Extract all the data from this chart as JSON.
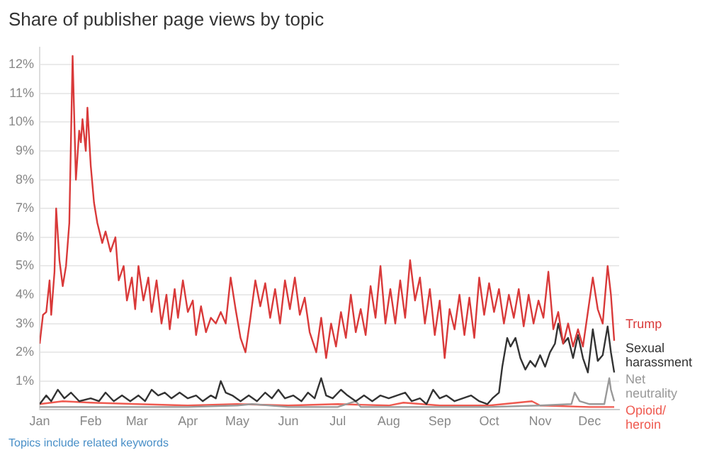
{
  "chart_data": {
    "type": "line",
    "title": "Share of publisher page views by topic",
    "annotations": [
      "Topics include related keywords"
    ],
    "xlim": [
      "--01-01",
      "--12-19"
    ],
    "xticks": [
      {
        "value": "--01-01",
        "label": "Jan"
      },
      {
        "value": "--02-01",
        "label": "Feb"
      },
      {
        "value": "--03-01",
        "label": "Mar"
      },
      {
        "value": "--04-01",
        "label": "Apr"
      },
      {
        "value": "--05-01",
        "label": "May"
      },
      {
        "value": "--06-01",
        "label": "Jun"
      },
      {
        "value": "--07-01",
        "label": "Jul"
      },
      {
        "value": "--08-01",
        "label": "Aug"
      },
      {
        "value": "--09-01",
        "label": "Sep"
      },
      {
        "value": "--10-01",
        "label": "Oct"
      },
      {
        "value": "--11-01",
        "label": "Nov"
      },
      {
        "value": "--12-01",
        "label": "Dec"
      }
    ],
    "ylim": [
      0,
      12.6
    ],
    "yticks": [
      {
        "value": 1,
        "label": "1%"
      },
      {
        "value": 2,
        "label": "2%"
      },
      {
        "value": 3,
        "label": "3%"
      },
      {
        "value": 4,
        "label": "4%"
      },
      {
        "value": 5,
        "label": "5%"
      },
      {
        "value": 6,
        "label": "6%"
      },
      {
        "value": 7,
        "label": "7%"
      },
      {
        "value": 8,
        "label": "8%"
      },
      {
        "value": 9,
        "label": "9%"
      },
      {
        "value": 10,
        "label": "10%"
      },
      {
        "value": 11,
        "label": "11%"
      },
      {
        "value": 12,
        "label": "12%"
      }
    ],
    "grid": "y",
    "line_style": "solid",
    "series": [
      {
        "name": "Trump",
        "color": "#d93a3a",
        "x": [
          "--01-01",
          "--01-03",
          "--01-05",
          "--01-07",
          "--01-08",
          "--01-10",
          "--01-11",
          "--01-13",
          "--01-15",
          "--01-17",
          "--01-19",
          "--01-21",
          "--01-23",
          "--01-25",
          "--01-26",
          "--01-27",
          "--01-29",
          "--01-30",
          "--02-01",
          "--02-03",
          "--02-05",
          "--02-08",
          "--02-10",
          "--02-13",
          "--02-16",
          "--02-18",
          "--02-21",
          "--02-23",
          "--02-26",
          "--02-28",
          "--03-02",
          "--03-05",
          "--03-08",
          "--03-10",
          "--03-13",
          "--03-16",
          "--03-19",
          "--03-21",
          "--03-24",
          "--03-26",
          "--03-29",
          "--04-01",
          "--04-04",
          "--04-06",
          "--04-09",
          "--04-12",
          "--04-15",
          "--04-18",
          "--04-21",
          "--04-24",
          "--04-27",
          "--04-30",
          "--05-03",
          "--05-06",
          "--05-09",
          "--05-12",
          "--05-15",
          "--05-18",
          "--05-21",
          "--05-24",
          "--05-27",
          "--05-30",
          "--06-02",
          "--06-05",
          "--06-08",
          "--06-11",
          "--06-14",
          "--06-18",
          "--06-21",
          "--06-24",
          "--06-27",
          "--06-30",
          "--07-03",
          "--07-06",
          "--07-09",
          "--07-12",
          "--07-15",
          "--07-18",
          "--07-21",
          "--07-24",
          "--07-27",
          "--07-30",
          "--08-02",
          "--08-05",
          "--08-08",
          "--08-11",
          "--08-14",
          "--08-17",
          "--08-20",
          "--08-23",
          "--08-26",
          "--08-29",
          "--09-01",
          "--09-04",
          "--09-07",
          "--09-10",
          "--09-13",
          "--09-16",
          "--09-19",
          "--09-22",
          "--09-25",
          "--09-28",
          "--10-01",
          "--10-04",
          "--10-07",
          "--10-10",
          "--10-13",
          "--10-16",
          "--10-19",
          "--10-22",
          "--10-25",
          "--10-28",
          "--10-31",
          "--11-03",
          "--11-06",
          "--11-09",
          "--11-12",
          "--11-15",
          "--11-18",
          "--11-21",
          "--11-24",
          "--11-27",
          "--11-30",
          "--12-03",
          "--12-06",
          "--12-09",
          "--12-12",
          "--12-14",
          "--12-16"
        ],
        "values": [
          2.3,
          3.3,
          3.4,
          4.5,
          3.3,
          4.8,
          7.0,
          5.2,
          4.3,
          5.0,
          6.5,
          12.3,
          8.0,
          9.7,
          9.3,
          10.1,
          9.0,
          10.5,
          8.5,
          7.2,
          6.5,
          5.8,
          6.2,
          5.5,
          6.0,
          4.5,
          5.0,
          3.8,
          4.6,
          3.5,
          5.0,
          3.8,
          4.6,
          3.4,
          4.5,
          3.0,
          4.0,
          2.8,
          4.2,
          3.2,
          4.5,
          3.4,
          3.8,
          2.6,
          3.6,
          2.7,
          3.2,
          3.0,
          3.4,
          3.0,
          4.6,
          3.5,
          2.5,
          2.0,
          3.2,
          4.5,
          3.6,
          4.4,
          3.2,
          4.2,
          3.0,
          4.5,
          3.5,
          4.6,
          3.3,
          3.9,
          2.7,
          2.0,
          3.2,
          1.8,
          3.0,
          2.2,
          3.4,
          2.5,
          4.0,
          2.7,
          3.5,
          2.6,
          4.3,
          3.2,
          5.0,
          3.0,
          4.2,
          3.0,
          4.5,
          3.2,
          5.2,
          3.8,
          4.6,
          3.0,
          4.2,
          2.6,
          3.8,
          1.8,
          3.5,
          2.8,
          4.0,
          2.6,
          3.9,
          2.5,
          4.6,
          3.3,
          4.4,
          3.4,
          4.2,
          3.0,
          4.0,
          3.2,
          4.2,
          2.9,
          4.0,
          3.0,
          3.8,
          3.2,
          4.8,
          2.8,
          3.4,
          2.3,
          3.0,
          2.2,
          2.8,
          2.2,
          3.4,
          4.6,
          3.5,
          3.0,
          5.0,
          4.0,
          2.4
        ]
      },
      {
        "name": "Sexual harassment",
        "color": "#333333",
        "x": [
          "--01-01",
          "--01-05",
          "--01-08",
          "--01-12",
          "--01-16",
          "--01-20",
          "--01-25",
          "--02-01",
          "--02-06",
          "--02-10",
          "--02-15",
          "--02-20",
          "--02-25",
          "--03-02",
          "--03-06",
          "--03-10",
          "--03-14",
          "--03-18",
          "--03-22",
          "--03-27",
          "--04-01",
          "--04-06",
          "--04-10",
          "--04-15",
          "--04-18",
          "--04-21",
          "--04-24",
          "--04-28",
          "--05-03",
          "--05-08",
          "--05-13",
          "--05-18",
          "--05-22",
          "--05-26",
          "--05-30",
          "--06-04",
          "--06-09",
          "--06-13",
          "--06-17",
          "--06-21",
          "--06-24",
          "--06-28",
          "--07-03",
          "--07-07",
          "--07-12",
          "--07-17",
          "--07-22",
          "--07-27",
          "--08-01",
          "--08-06",
          "--08-11",
          "--08-15",
          "--08-20",
          "--08-24",
          "--08-28",
          "--09-01",
          "--09-05",
          "--09-10",
          "--09-15",
          "--09-20",
          "--09-25",
          "--09-30",
          "--10-03",
          "--10-07",
          "--10-09",
          "--10-12",
          "--10-14",
          "--10-17",
          "--10-20",
          "--10-23",
          "--10-26",
          "--10-29",
          "--11-01",
          "--11-04",
          "--11-07",
          "--11-10",
          "--11-12",
          "--11-15",
          "--11-18",
          "--11-21",
          "--11-24",
          "--11-27",
          "--11-30",
          "--12-03",
          "--12-06",
          "--12-09",
          "--12-12",
          "--12-14",
          "--12-16"
        ],
        "values": [
          0.2,
          0.5,
          0.3,
          0.7,
          0.4,
          0.6,
          0.3,
          0.4,
          0.3,
          0.6,
          0.3,
          0.5,
          0.3,
          0.5,
          0.3,
          0.7,
          0.5,
          0.6,
          0.4,
          0.6,
          0.4,
          0.5,
          0.3,
          0.5,
          0.4,
          1.0,
          0.6,
          0.5,
          0.3,
          0.5,
          0.3,
          0.6,
          0.4,
          0.7,
          0.4,
          0.5,
          0.3,
          0.6,
          0.4,
          1.1,
          0.5,
          0.4,
          0.7,
          0.5,
          0.3,
          0.5,
          0.3,
          0.5,
          0.4,
          0.5,
          0.6,
          0.3,
          0.4,
          0.2,
          0.7,
          0.4,
          0.5,
          0.3,
          0.4,
          0.5,
          0.3,
          0.2,
          0.4,
          0.6,
          1.5,
          2.5,
          2.2,
          2.5,
          1.8,
          1.4,
          1.7,
          1.5,
          1.9,
          1.5,
          2.0,
          2.3,
          3.0,
          2.3,
          2.5,
          1.8,
          2.6,
          1.8,
          1.3,
          2.8,
          1.7,
          1.9,
          2.9,
          2.0,
          1.3
        ]
      },
      {
        "name": "Net neutrality",
        "color": "#999999",
        "x": [
          "--01-01",
          "--02-01",
          "--03-01",
          "--04-01",
          "--05-01",
          "--05-10",
          "--06-01",
          "--07-01",
          "--07-12",
          "--07-15",
          "--08-01",
          "--09-01",
          "--10-01",
          "--11-01",
          "--11-20",
          "--11-22",
          "--11-25",
          "--12-01",
          "--12-10",
          "--12-13",
          "--12-14",
          "--12-16"
        ],
        "values": [
          0.1,
          0.1,
          0.1,
          0.1,
          0.15,
          0.2,
          0.1,
          0.1,
          0.3,
          0.1,
          0.1,
          0.1,
          0.1,
          0.15,
          0.2,
          0.6,
          0.3,
          0.2,
          0.2,
          1.1,
          0.7,
          0.3
        ]
      },
      {
        "name": "Opioid/heroin",
        "color": "#ef5a50",
        "x": [
          "--01-01",
          "--01-15",
          "--02-01",
          "--03-01",
          "--04-01",
          "--05-01",
          "--06-01",
          "--07-01",
          "--08-01",
          "--08-10",
          "--09-01",
          "--10-01",
          "--10-27",
          "--11-01",
          "--12-01",
          "--12-16"
        ],
        "values": [
          0.2,
          0.3,
          0.25,
          0.2,
          0.15,
          0.2,
          0.15,
          0.2,
          0.15,
          0.25,
          0.15,
          0.15,
          0.3,
          0.15,
          0.1,
          0.1
        ]
      }
    ]
  }
}
